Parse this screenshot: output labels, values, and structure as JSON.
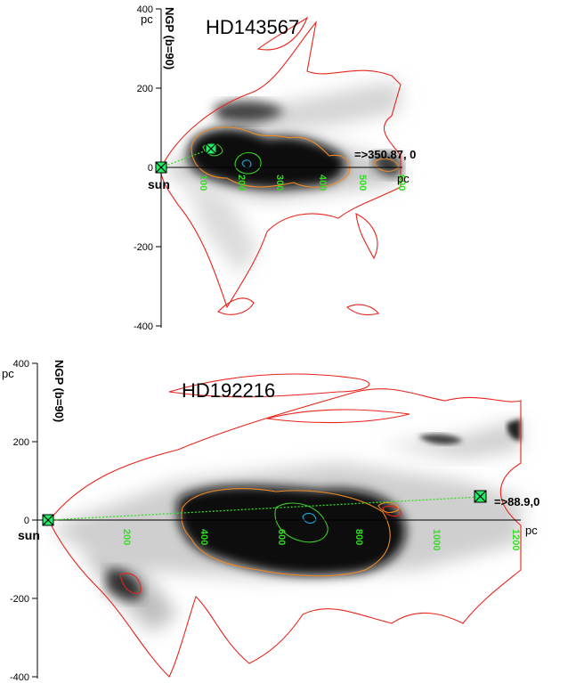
{
  "panels": [
    {
      "name": "HD143567",
      "star_label": "HD143567",
      "unit_label": "pc",
      "vertical_axis_label": "NGP (b=90)",
      "y_ticks": [
        "400",
        "200",
        "0",
        "-200",
        "-400"
      ],
      "x_ticks": [
        "100",
        "200",
        "300",
        "400",
        "500",
        "600"
      ],
      "x_unit_label": "pc",
      "direction_label": "=>350.87, 0",
      "sun_label": "sun"
    },
    {
      "name": "HD192216",
      "star_label": "HD192216",
      "unit_label": "pc",
      "vertical_axis_label": "NGP (b=90)",
      "y_ticks": [
        "400",
        "200",
        "0",
        "-200",
        "-400"
      ],
      "x_ticks": [
        "200",
        "400",
        "600",
        "800",
        "1000",
        "1200"
      ],
      "x_unit_label": "pc",
      "direction_label": "=>88.9,0",
      "sun_label": "sun"
    }
  ],
  "colors": {
    "outer_contour": "#e8241c",
    "mid_contour": "#f08a24",
    "inner_contour": "#3fcc2a",
    "core_contour": "#27a7d8",
    "axis": "#000000",
    "marker_fill": "#22ee66",
    "sightline": "#33dd22",
    "tick_label": "#33dd22"
  }
}
